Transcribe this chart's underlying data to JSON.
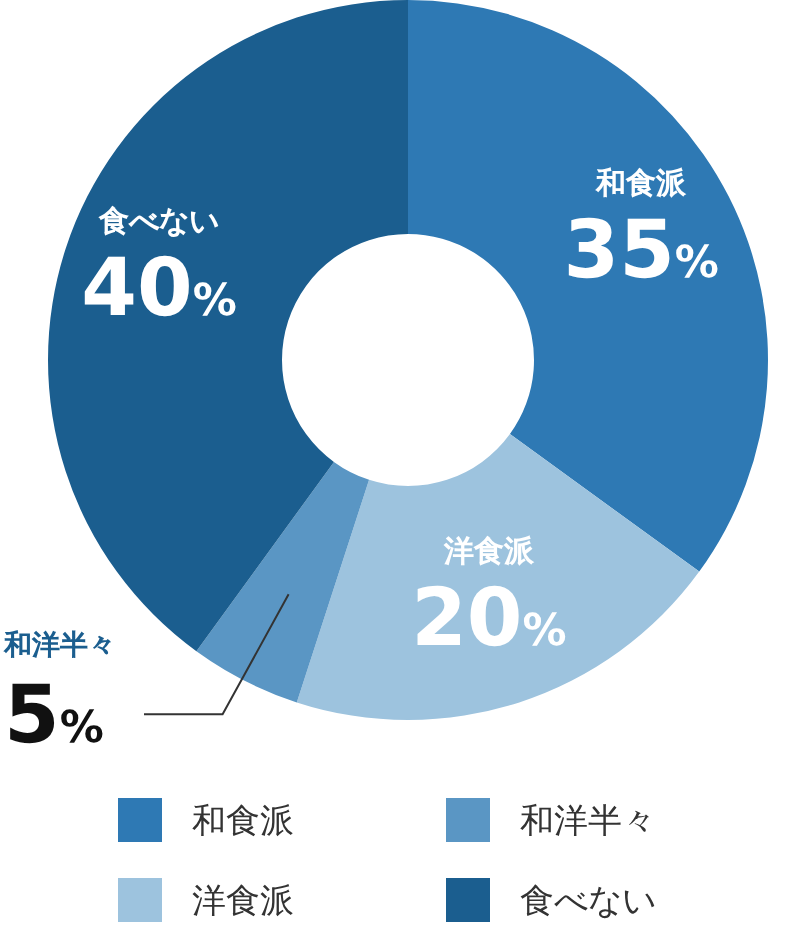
{
  "chart_data": {
    "type": "donut",
    "categories": [
      "和食派",
      "洋食派",
      "和洋半々",
      "食べない"
    ],
    "values": [
      35,
      20,
      5,
      40
    ],
    "colors": [
      "#2e79b4",
      "#9dc3de",
      "#5a96c4",
      "#1b5e8f"
    ],
    "value_labels": [
      "35%",
      "20%",
      "5%",
      "40%"
    ],
    "legend": "bottom"
  }
}
